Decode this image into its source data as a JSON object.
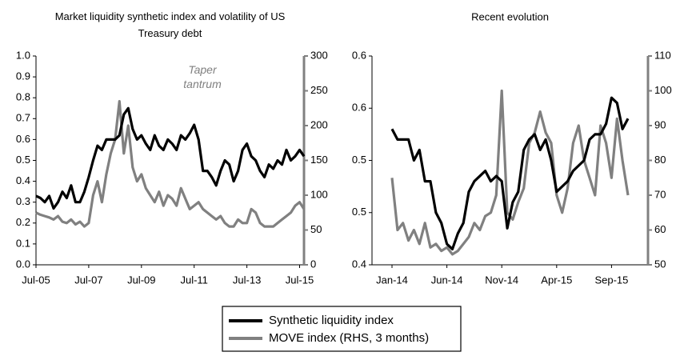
{
  "chart_data": [
    {
      "type": "line",
      "title": "Market liquidity synthetic index and volatility of US Treasury debt",
      "annotation": "Taper tantrum",
      "categories": [
        "Jul-05",
        null,
        null,
        null,
        null,
        null,
        null,
        null,
        null,
        null,
        null,
        null,
        "Jul-07",
        null,
        null,
        null,
        null,
        null,
        null,
        null,
        null,
        null,
        null,
        null,
        "Jul-09",
        null,
        null,
        null,
        null,
        null,
        null,
        null,
        null,
        null,
        null,
        null,
        "Jul-11",
        null,
        null,
        null,
        null,
        null,
        null,
        null,
        null,
        null,
        null,
        null,
        "Jul-13",
        null,
        null,
        null,
        null,
        null,
        null,
        null,
        null,
        null,
        null,
        null,
        "Jul-15",
        null
      ],
      "series": [
        {
          "name": "Synthetic liquidity index",
          "color": "#000000",
          "values": [
            0.33,
            0.32,
            0.3,
            0.33,
            0.27,
            0.3,
            0.35,
            0.32,
            0.38,
            0.3,
            0.3,
            0.35,
            0.42,
            0.5,
            0.57,
            0.55,
            0.6,
            0.6,
            0.6,
            0.62,
            0.72,
            0.75,
            0.65,
            0.6,
            0.62,
            0.58,
            0.55,
            0.62,
            0.57,
            0.55,
            0.6,
            0.58,
            0.55,
            0.62,
            0.6,
            0.63,
            0.67,
            0.6,
            0.45,
            0.45,
            0.42,
            0.38,
            0.45,
            0.5,
            0.48,
            0.4,
            0.45,
            0.55,
            0.58,
            0.52,
            0.5,
            0.45,
            0.42,
            0.48,
            0.46,
            0.5,
            0.48,
            0.55,
            0.5,
            0.52,
            0.55,
            0.52
          ]
        },
        {
          "name": "MOVE index (RHS, 3 months)",
          "color": "#808080",
          "axis": "y2",
          "values": [
            75,
            72,
            70,
            68,
            65,
            70,
            62,
            60,
            65,
            58,
            62,
            55,
            60,
            100,
            120,
            90,
            130,
            160,
            180,
            235,
            160,
            200,
            140,
            120,
            130,
            110,
            100,
            90,
            105,
            85,
            100,
            95,
            85,
            110,
            95,
            80,
            85,
            90,
            80,
            75,
            70,
            65,
            70,
            60,
            55,
            55,
            65,
            60,
            60,
            80,
            75,
            60,
            55,
            55,
            55,
            60,
            65,
            70,
            75,
            85,
            90,
            80
          ]
        }
      ],
      "ylim": [
        0,
        1
      ],
      "yticks": [
        {
          "value": 0,
          "label": "0.0"
        },
        0.1,
        0.2,
        0.3,
        0.4,
        0.5,
        0.6,
        0.7,
        0.8,
        0.9,
        {
          "value": 1,
          "label": "1.0"
        }
      ],
      "y2lim": [
        0,
        300
      ],
      "y2ticks": [
        0,
        50,
        100,
        150,
        200,
        250,
        300
      ]
    },
    {
      "type": "line",
      "title": "Recent evolution",
      "categories": [
        "Jan-14",
        null,
        null,
        null,
        null,
        null,
        null,
        null,
        null,
        null,
        "Jun-14",
        null,
        null,
        null,
        null,
        null,
        null,
        null,
        null,
        null,
        "Nov-14",
        null,
        null,
        null,
        null,
        null,
        null,
        null,
        null,
        null,
        "Apr-15",
        null,
        null,
        null,
        null,
        null,
        null,
        null,
        null,
        null,
        "Sep-15",
        null,
        null,
        null
      ],
      "series": [
        {
          "color": "#000000",
          "values": [
            0.53,
            0.52,
            0.52,
            0.52,
            0.5,
            0.51,
            0.48,
            0.48,
            0.45,
            0.44,
            0.42,
            0.415,
            0.43,
            0.44,
            0.47,
            0.48,
            0.485,
            0.49,
            0.48,
            0.485,
            0.48,
            0.435,
            0.46,
            0.47,
            0.51,
            0.52,
            0.525,
            0.51,
            0.52,
            0.5,
            0.47,
            0.475,
            0.48,
            0.49,
            0.495,
            0.5,
            0.52,
            0.525,
            0.525,
            0.535,
            0.56,
            0.555,
            0.53,
            0.54
          ]
        },
        {
          "color": "#808080",
          "axis": "y2",
          "values": [
            75,
            60,
            62,
            57,
            60,
            56,
            62,
            55,
            56,
            54,
            55,
            53,
            54,
            56,
            58,
            62,
            60,
            64,
            65,
            70,
            100,
            65,
            63,
            68,
            72,
            85,
            88,
            94,
            88,
            85,
            70,
            65,
            72,
            85,
            90,
            80,
            75,
            70,
            90,
            85,
            75,
            92,
            80,
            70
          ]
        }
      ],
      "ylim": [
        0.4,
        0.6
      ],
      "yticks": [
        0.4,
        {
          "value": 0.45,
          "label": "0.5"
        },
        0.5,
        {
          "value": 0.55,
          "label": "0.6"
        },
        0.6
      ],
      "y2lim": [
        50,
        110
      ],
      "y2ticks": [
        50,
        60,
        70,
        80,
        90,
        100,
        110
      ]
    }
  ]
}
